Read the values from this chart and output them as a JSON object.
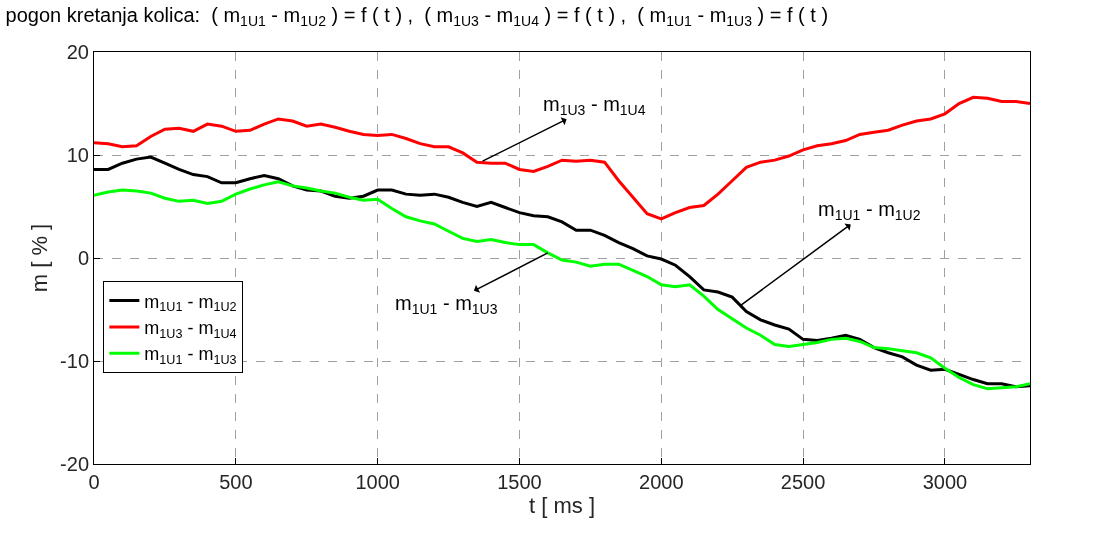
{
  "chart_data": {
    "type": "line",
    "title": "pogon kretanja kolica:  ( m$_{1U1}$ - m$_{1U2}$ ) = f ( t ) ,  ( m$_{1U3}$ - m$_{1U4}$ ) = f ( t ) ,  ( m$_{1U1}$ - m$_{1U3}$ ) = f ( t )",
    "xlabel": "t [ ms ]",
    "ylabel": "m [ % ]",
    "x": [
      0,
      50,
      100,
      150,
      200,
      250,
      300,
      350,
      400,
      450,
      500,
      550,
      600,
      650,
      700,
      750,
      800,
      850,
      900,
      950,
      1000,
      1050,
      1100,
      1150,
      1200,
      1250,
      1300,
      1350,
      1400,
      1450,
      1500,
      1550,
      1600,
      1650,
      1700,
      1750,
      1800,
      1850,
      1900,
      1950,
      2000,
      2050,
      2100,
      2150,
      2200,
      2250,
      2300,
      2350,
      2400,
      2450,
      2500,
      2550,
      2600,
      2650,
      2700,
      2750,
      2800,
      2850,
      2900,
      2950,
      3000,
      3050,
      3100,
      3150,
      3200,
      3250,
      3300
    ],
    "series": [
      {
        "name": "m$_{1U1}$ - m$_{1U2}$",
        "color": "#000000",
        "values": [
          8.6,
          8.6,
          9.2,
          9.6,
          9.8,
          9.2,
          8.6,
          8.1,
          7.9,
          7.3,
          7.3,
          7.7,
          8.0,
          7.7,
          7.0,
          6.6,
          6.5,
          6.0,
          5.8,
          6.0,
          6.6,
          6.6,
          6.2,
          6.1,
          6.2,
          5.9,
          5.4,
          5.0,
          5.4,
          4.9,
          4.4,
          4.1,
          4.0,
          3.5,
          2.7,
          2.7,
          2.2,
          1.5,
          0.9,
          0.2,
          -0.1,
          -0.7,
          -1.8,
          -3.1,
          -3.3,
          -3.8,
          -5.2,
          -6.0,
          -6.5,
          -6.9,
          -7.9,
          -8.0,
          -7.8,
          -7.5,
          -7.9,
          -8.7,
          -9.2,
          -9.6,
          -10.4,
          -10.9,
          -10.8,
          -11.3,
          -11.8,
          -12.2,
          -12.2,
          -12.5,
          -12.4
        ]
      },
      {
        "name": "m$_{1U3}$ - m$_{1U4}$",
        "color": "#ff0000",
        "values": [
          11.2,
          11.1,
          10.8,
          10.9,
          11.8,
          12.5,
          12.6,
          12.3,
          13.0,
          12.8,
          12.3,
          12.4,
          13.0,
          13.5,
          13.3,
          12.8,
          13.0,
          12.7,
          12.3,
          12.0,
          11.9,
          12.0,
          11.6,
          11.1,
          10.8,
          10.8,
          10.2,
          9.3,
          9.2,
          9.2,
          8.6,
          8.4,
          8.9,
          9.5,
          9.4,
          9.5,
          9.3,
          7.5,
          5.9,
          4.3,
          3.8,
          4.4,
          4.9,
          5.1,
          6.2,
          7.5,
          8.8,
          9.3,
          9.5,
          9.9,
          10.5,
          10.9,
          11.1,
          11.4,
          12.0,
          12.2,
          12.4,
          12.9,
          13.3,
          13.5,
          14.0,
          15.0,
          15.6,
          15.5,
          15.2,
          15.2,
          15.0
        ]
      },
      {
        "name": "m$_{1U1}$ - m$_{1U3}$",
        "color": "#00ff00",
        "values": [
          6.1,
          6.4,
          6.6,
          6.5,
          6.3,
          5.8,
          5.5,
          5.6,
          5.3,
          5.5,
          6.2,
          6.7,
          7.1,
          7.4,
          7.0,
          6.8,
          6.5,
          6.3,
          5.9,
          5.6,
          5.7,
          4.8,
          4.0,
          3.6,
          3.3,
          2.6,
          1.9,
          1.6,
          1.8,
          1.5,
          1.3,
          1.3,
          0.5,
          -0.2,
          -0.4,
          -0.8,
          -0.6,
          -0.6,
          -1.2,
          -1.8,
          -2.6,
          -2.8,
          -2.6,
          -3.7,
          -5.0,
          -5.9,
          -6.8,
          -7.5,
          -8.4,
          -8.6,
          -8.4,
          -8.2,
          -7.9,
          -7.8,
          -8.1,
          -8.7,
          -8.8,
          -9.0,
          -9.2,
          -9.7,
          -10.7,
          -11.6,
          -12.3,
          -12.7,
          -12.6,
          -12.5,
          -12.2
        ]
      }
    ],
    "annotations": [
      {
        "text": "m$_{1U3}$ - m$_{1U4}$",
        "x": 1370,
        "y": 9.4
      },
      {
        "text": "m$_{1U1}$ - m$_{1U2}$",
        "x": 2280,
        "y": -4.6
      },
      {
        "text": "m$_{1U1}$ - m$_{1U3}$",
        "x": 1600,
        "y": 0.5
      }
    ],
    "xlim": [
      0,
      3300
    ],
    "xticks": [
      0,
      500,
      1000,
      1500,
      2000,
      2500,
      3000
    ],
    "ylim": [
      -20,
      20
    ],
    "yticks": [
      -20,
      -10,
      0,
      10,
      20
    ],
    "grid": true,
    "legend": "bottom left",
    "line_style": "solid",
    "marker": "none"
  }
}
